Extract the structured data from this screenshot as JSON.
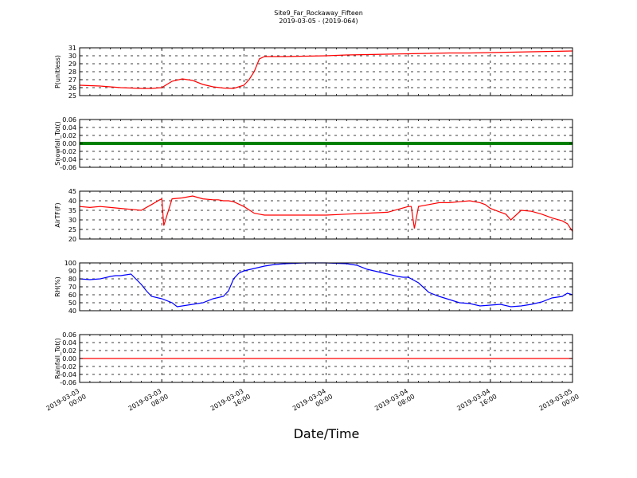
{
  "figure": {
    "title_line1": "Site9_Far_Rockaway_Fifteen",
    "title_line2": "2019-03-05 - (2019-064)",
    "xlabel": "Date/Time",
    "x_ticks": [
      {
        "l1": "2019-03-03",
        "l2": "00:00"
      },
      {
        "l1": "2019-03-03",
        "l2": "08:00"
      },
      {
        "l1": "2019-03-03",
        "l2": "16:00"
      },
      {
        "l1": "2019-03-04",
        "l2": "00:00"
      },
      {
        "l1": "2019-03-04",
        "l2": "08:00"
      },
      {
        "l1": "2019-03-04",
        "l2": "16:00"
      },
      {
        "l1": "2019-03-05",
        "l2": "00:00"
      }
    ]
  },
  "chart_data": [
    {
      "type": "line",
      "ylabel": "P(unitless)",
      "ylim": [
        25,
        31
      ],
      "yticks": [
        25,
        26,
        27,
        28,
        29,
        30,
        31
      ],
      "xrange_hours": [
        0,
        48
      ],
      "grid": true,
      "series": [
        {
          "color": "#ff0000",
          "x": [
            0,
            2,
            4,
            6,
            7,
            8,
            8.5,
            9,
            10,
            11,
            12,
            13,
            14,
            15,
            16,
            16.5,
            17,
            17.5,
            18,
            18.5,
            19,
            20,
            22,
            24,
            26,
            28,
            30,
            32,
            34,
            36,
            38,
            40,
            42,
            44,
            46,
            48
          ],
          "y": [
            26.3,
            26.2,
            26.0,
            25.9,
            25.9,
            26.0,
            26.4,
            26.8,
            27.1,
            26.9,
            26.4,
            26.1,
            25.95,
            25.9,
            26.3,
            27.0,
            28.0,
            29.6,
            29.9,
            29.9,
            29.9,
            29.9,
            29.95,
            30.0,
            30.1,
            30.15,
            30.2,
            30.25,
            30.3,
            30.35,
            30.35,
            30.4,
            30.45,
            30.5,
            30.55,
            30.6
          ]
        }
      ]
    },
    {
      "type": "line",
      "ylabel": "Snowfall_Tot()",
      "ylim": [
        -0.06,
        0.06
      ],
      "yticks": [
        -0.06,
        -0.04,
        -0.02,
        0.0,
        0.02,
        0.04,
        0.06
      ],
      "xrange_hours": [
        0,
        48
      ],
      "grid": true,
      "series": [
        {
          "color": "#008000",
          "x": [
            0,
            48
          ],
          "y": [
            0,
            0
          ]
        }
      ]
    },
    {
      "type": "line",
      "ylabel": "AirTF(F)",
      "ylim": [
        20,
        45
      ],
      "yticks": [
        20,
        25,
        30,
        35,
        40,
        45
      ],
      "xrange_hours": [
        0,
        48
      ],
      "grid": true,
      "series": [
        {
          "color": "#ff0000",
          "x": [
            0,
            1,
            2,
            3,
            4,
            5,
            6,
            7,
            7.8,
            8,
            8.2,
            9,
            10,
            11,
            12,
            13,
            13.5,
            14,
            14.5,
            15,
            16,
            17,
            17.5,
            18,
            19,
            20,
            22,
            24,
            26,
            28,
            30,
            31,
            32,
            32.3,
            32.6,
            33,
            34,
            35,
            36,
            37,
            38,
            39,
            39.5,
            40,
            41,
            41.5,
            42,
            43,
            44,
            45,
            46,
            47,
            47.5,
            48
          ],
          "y": [
            37,
            36.5,
            37,
            36.5,
            36,
            35.5,
            35,
            38,
            40.5,
            41,
            27,
            41,
            41.5,
            42.5,
            41,
            40.5,
            40.5,
            40,
            40,
            39.5,
            37,
            33.5,
            33,
            32.5,
            32.5,
            32.5,
            32.5,
            32.5,
            33,
            33.5,
            34,
            35.5,
            37,
            37,
            25.5,
            37,
            38,
            39,
            39,
            39.5,
            40,
            39,
            38,
            36,
            34,
            33,
            30,
            35,
            34.5,
            33,
            31,
            29.5,
            28,
            24
          ]
        }
      ]
    },
    {
      "type": "line",
      "ylabel": "RH(%)",
      "ylim": [
        40,
        100
      ],
      "yticks": [
        40,
        50,
        60,
        70,
        80,
        90,
        100
      ],
      "xrange_hours": [
        0,
        48
      ],
      "grid": true,
      "series": [
        {
          "color": "#0000ff",
          "x": [
            0,
            1,
            2,
            3,
            3.5,
            4,
            4.5,
            5,
            6,
            6.5,
            7,
            8,
            9,
            9.5,
            10,
            11,
            12,
            13,
            14,
            14.5,
            15,
            15.5,
            16,
            17,
            18,
            19,
            20,
            22,
            24,
            26,
            27,
            28,
            29,
            30,
            31,
            31.5,
            32,
            33,
            34,
            35,
            36,
            37,
            38,
            39,
            40,
            41,
            42,
            43,
            44,
            45,
            46,
            47,
            47.5,
            48
          ],
          "y": [
            80,
            79,
            80,
            83,
            84,
            84,
            85,
            86,
            73,
            65,
            58,
            55,
            50,
            45,
            46,
            48,
            50,
            55,
            58,
            65,
            80,
            87,
            90,
            93,
            96,
            98,
            99,
            100,
            100,
            99,
            97,
            92,
            89,
            86,
            83,
            82,
            82,
            75,
            63,
            58,
            54,
            50,
            49,
            46,
            47,
            48,
            45,
            46,
            48,
            51,
            56,
            58,
            62,
            60
          ]
        }
      ]
    },
    {
      "type": "line",
      "ylabel": "Rainfall_Tot()",
      "ylim": [
        -0.06,
        0.06
      ],
      "yticks": [
        -0.06,
        -0.04,
        -0.02,
        0.0,
        0.02,
        0.04,
        0.06
      ],
      "xrange_hours": [
        0,
        48
      ],
      "grid": true,
      "series": [
        {
          "color": "#ff0000",
          "x": [
            0,
            48
          ],
          "y": [
            0,
            0
          ]
        }
      ]
    }
  ]
}
